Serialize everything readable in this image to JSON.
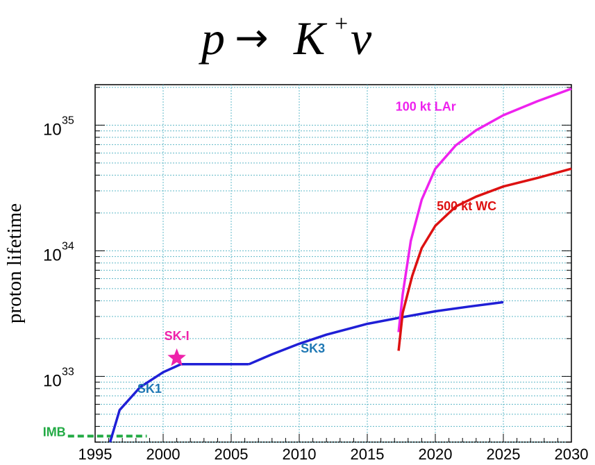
{
  "chart_data": {
    "type": "line",
    "title": {
      "p": "p",
      "arrow": "→",
      "K": "K",
      "plus": "+",
      "nu": "ν"
    },
    "xlabel": "",
    "ylabel": "proton lifetime",
    "x_ticks": [
      1995,
      2000,
      2005,
      2010,
      2015,
      2020,
      2025,
      2030
    ],
    "y_ticks": [
      {
        "value": 1e+33,
        "base": "10",
        "exp": "33"
      },
      {
        "value": 1e+34,
        "base": "10",
        "exp": "34"
      },
      {
        "value": 1e+35,
        "base": "10",
        "exp": "35"
      }
    ],
    "xlim": [
      1995,
      2030
    ],
    "ylim": [
      3e+32,
      2.1e+35
    ],
    "yscale": "log",
    "grid": true,
    "series": [
      {
        "name": "SK1",
        "color": "#1f1fd6",
        "points": [
          [
            1996.1,
            3e+32
          ],
          [
            1996.8,
            5.4e+32
          ],
          [
            1998.3,
            8.2e+32
          ],
          [
            2000.0,
            1.08e+33
          ],
          [
            2001.3,
            1.25e+33
          ],
          [
            2006.3,
            1.25e+33
          ]
        ]
      },
      {
        "name": "SK3",
        "color": "#1f1fd6",
        "points": [
          [
            2006.3,
            1.25e+33
          ],
          [
            2008.0,
            1.5e+33
          ],
          [
            2010.0,
            1.82e+33
          ],
          [
            2012.0,
            2.15e+33
          ],
          [
            2015.0,
            2.62e+33
          ],
          [
            2017.5,
            2.95e+33
          ],
          [
            2020.0,
            3.3e+33
          ],
          [
            2022.5,
            3.6e+33
          ],
          [
            2025.0,
            3.9e+33
          ]
        ]
      },
      {
        "name": "100 kt LAr",
        "color": "#ee22ee",
        "points": [
          [
            2017.3,
            2.25e+33
          ],
          [
            2017.6,
            4.5e+33
          ],
          [
            2018.2,
            1.2e+34
          ],
          [
            2019.0,
            2.55e+34
          ],
          [
            2020.0,
            4.5e+34
          ],
          [
            2021.5,
            6.9e+34
          ],
          [
            2023.0,
            9.1e+34
          ],
          [
            2025.0,
            1.2e+35
          ],
          [
            2027.5,
            1.55e+35
          ],
          [
            2030.0,
            1.95e+35
          ]
        ]
      },
      {
        "name": "500 kt WC",
        "color": "#dd1111",
        "points": [
          [
            2017.3,
            1.6e+33
          ],
          [
            2017.6,
            3.2e+33
          ],
          [
            2018.3,
            6.3e+33
          ],
          [
            2019.0,
            1.05e+34
          ],
          [
            2020.0,
            1.58e+34
          ],
          [
            2021.5,
            2.25e+34
          ],
          [
            2023.0,
            2.7e+34
          ],
          [
            2025.0,
            3.25e+34
          ],
          [
            2027.5,
            3.8e+34
          ],
          [
            2030.0,
            4.5e+34
          ]
        ]
      }
    ],
    "annotations": [
      {
        "text": "SK1",
        "x": 1999.0,
        "y": 7.4e+32,
        "color": "#1f78b4"
      },
      {
        "text": "SK3",
        "x": 2011.0,
        "y": 1.55e+33,
        "color": "#1f78b4"
      },
      {
        "text": "SK-I",
        "x": 2001.0,
        "y": 1.95e+33,
        "color": "#ee22aa"
      },
      {
        "text": "100 kt LAr",
        "x": 2019.3,
        "y": 1.3e+35,
        "color": "#ee22ee"
      },
      {
        "text": "500 kt WC",
        "x": 2022.3,
        "y": 2.1e+34,
        "color": "#dd1111"
      },
      {
        "text": "IMB",
        "x": 1992.0,
        "y": 3.35e+32,
        "color": "#22aa44"
      }
    ],
    "markers": [
      {
        "name": "SK-I",
        "shape": "star",
        "x": 2001.0,
        "y": 1.4e+33,
        "color": "#ee22aa"
      }
    ],
    "reference_lines": [
      {
        "name": "IMB",
        "x_range": [
          1993.0,
          1998.8
        ],
        "y": 3.35e+32,
        "color": "#22aa44",
        "dashed": true
      }
    ]
  }
}
